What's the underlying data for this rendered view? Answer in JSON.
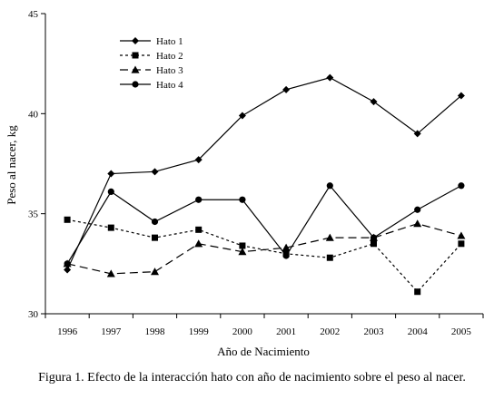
{
  "figure": {
    "caption": "Figura 1. Efecto de la interacción hato con año de nacimiento sobre el peso al nacer."
  },
  "chart_data": {
    "type": "line",
    "title": "",
    "xlabel": "Año de Nacimiento",
    "ylabel": "Peso al nacer, kg",
    "x": [
      "1996",
      "1997",
      "1998",
      "1999",
      "2000",
      "2001",
      "2002",
      "2003",
      "2004",
      "2005"
    ],
    "ylim": [
      30,
      45
    ],
    "yticks": [
      "30",
      "35",
      "40",
      "45"
    ],
    "grid": false,
    "legend_position": "top-left",
    "series": [
      {
        "name": "Hato 1",
        "marker": "diamond",
        "line_style": "solid",
        "values": [
          32.2,
          37.0,
          37.1,
          37.7,
          39.9,
          41.2,
          41.8,
          40.6,
          39.0,
          40.9
        ]
      },
      {
        "name": "Hato 2",
        "marker": "square",
        "line_style": "dotted",
        "values": [
          34.7,
          34.3,
          33.8,
          34.2,
          33.4,
          33.0,
          32.8,
          33.5,
          31.1,
          33.5
        ]
      },
      {
        "name": "Hato 3",
        "marker": "triangle",
        "line_style": "dashed",
        "values": [
          32.5,
          32.0,
          32.1,
          33.5,
          33.1,
          33.3,
          33.8,
          33.8,
          34.5,
          33.9
        ]
      },
      {
        "name": "Hato 4",
        "marker": "circle",
        "line_style": "solid",
        "values": [
          32.5,
          36.1,
          34.6,
          35.7,
          35.7,
          32.9,
          36.4,
          33.8,
          35.2,
          36.4
        ]
      }
    ]
  }
}
